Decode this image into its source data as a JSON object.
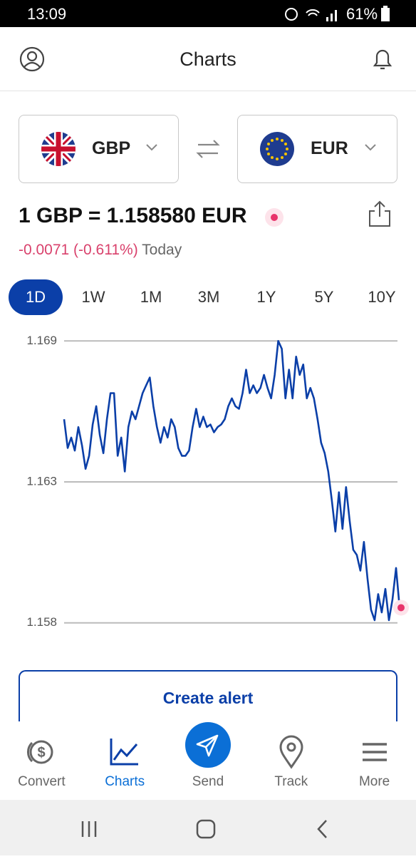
{
  "status_bar": {
    "time": "13:09",
    "battery": "61%"
  },
  "header": {
    "title": "Charts"
  },
  "converter": {
    "from": "GBP",
    "to": "EUR"
  },
  "rate": {
    "text": "1 GBP = 1.158580 EUR",
    "change": "-0.0071 (-0.611%)",
    "period": "Today"
  },
  "ranges": [
    "1D",
    "1W",
    "1M",
    "3M",
    "1Y",
    "5Y",
    "10Y"
  ],
  "chart_data": {
    "type": "line",
    "color": "#0b3fa8",
    "values": [
      1.1658,
      1.1647,
      1.1651,
      1.1646,
      1.1655,
      1.1648,
      1.1639,
      1.1644,
      1.1656,
      1.1663,
      1.1652,
      1.1645,
      1.1658,
      1.1668,
      1.1668,
      1.1644,
      1.1651,
      1.1638,
      1.1655,
      1.1661,
      1.1658,
      1.1663,
      1.1668,
      1.1671,
      1.1674,
      1.1663,
      1.1655,
      1.1649,
      1.1655,
      1.1651,
      1.1658,
      1.1655,
      1.1647,
      1.1644,
      1.1644,
      1.1646,
      1.1655,
      1.1662,
      1.1655,
      1.1659,
      1.1655,
      1.1656,
      1.1653,
      1.1655,
      1.1656,
      1.1658,
      1.1663,
      1.1666,
      1.1663,
      1.1662,
      1.1668,
      1.1677,
      1.1668,
      1.1671,
      1.1668,
      1.167,
      1.1675,
      1.167,
      1.1666,
      1.1675,
      1.1688,
      1.1685,
      1.1666,
      1.1677,
      1.1666,
      1.1682,
      1.1675,
      1.1679,
      1.1666,
      1.167,
      1.1666,
      1.1658,
      1.1649,
      1.1645,
      1.1638,
      1.1627,
      1.1615,
      1.163,
      1.1616,
      1.1632,
      1.1619,
      1.1608,
      1.1606,
      1.16,
      1.1611,
      1.1597,
      1.1585,
      1.1581,
      1.1591,
      1.1584,
      1.1593,
      1.1581,
      1.1589,
      1.1601,
      1.15858
    ],
    "ylim": [
      1.1575,
      1.1693
    ],
    "yticks": [
      {
        "value": 1.1688,
        "label": "1.169"
      },
      {
        "value": 1.1634,
        "label": "1.163"
      },
      {
        "value": 1.158,
        "label": "1.158"
      }
    ],
    "grid": true
  },
  "button": {
    "label": "Create alert"
  },
  "nav": [
    "Convert",
    "Charts",
    "Send",
    "Track",
    "More"
  ]
}
